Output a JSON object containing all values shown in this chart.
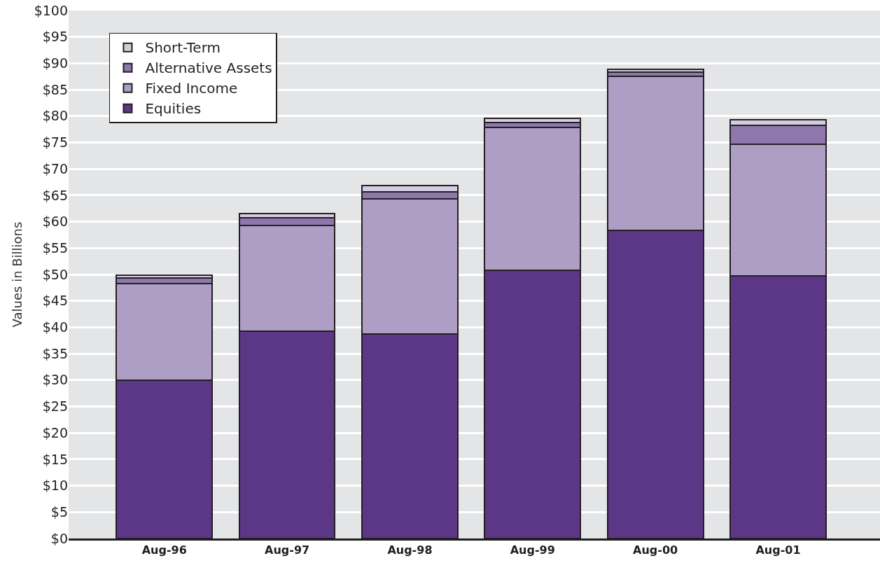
{
  "chart_data": {
    "type": "bar",
    "ylabel": "Values in Billions",
    "categories": [
      "Aug-96",
      "Aug-97",
      "Aug-98",
      "Aug-99",
      "Aug-00",
      "Aug-01"
    ],
    "series": [
      {
        "name": "Equities",
        "color": "#5c3788",
        "values": [
          30.0,
          39.2,
          38.7,
          50.8,
          58.3,
          49.7
        ]
      },
      {
        "name": "Fixed Income",
        "color": "#ae9ec6",
        "values": [
          18.3,
          20.1,
          25.6,
          27.1,
          29.2,
          25.0
        ]
      },
      {
        "name": "Alternative Assets",
        "color": "#8d77ad",
        "values": [
          1.1,
          1.5,
          1.3,
          0.9,
          0.8,
          3.6
        ]
      },
      {
        "name": "Short-Term",
        "color": "#d5cbe2",
        "values": [
          0.5,
          0.7,
          1.3,
          0.8,
          0.5,
          1.0
        ]
      }
    ],
    "stacked": true,
    "ylim": [
      0,
      100
    ],
    "yticks": [
      {
        "value": 0,
        "label": "$0"
      },
      {
        "value": 5,
        "label": "$5"
      },
      {
        "value": 10,
        "label": "$10"
      },
      {
        "value": 15,
        "label": "$15"
      },
      {
        "value": 20,
        "label": "$20"
      },
      {
        "value": 25,
        "label": "$25"
      },
      {
        "value": 30,
        "label": "$30"
      },
      {
        "value": 35,
        "label": "$35"
      },
      {
        "value": 40,
        "label": "$40"
      },
      {
        "value": 45,
        "label": "$45"
      },
      {
        "value": 50,
        "label": "$50"
      },
      {
        "value": 55,
        "label": "$55"
      },
      {
        "value": 60,
        "label": "$60"
      },
      {
        "value": 65,
        "label": "$65"
      },
      {
        "value": 70,
        "label": "$70"
      },
      {
        "value": 75,
        "label": "$75"
      },
      {
        "value": 80,
        "label": "$80"
      },
      {
        "value": 85,
        "label": "$85"
      },
      {
        "value": 90,
        "label": "$90"
      },
      {
        "value": 95,
        "label": "$95"
      },
      {
        "value": 100,
        "label": "$100"
      }
    ],
    "grid": "y",
    "legend": "top left"
  }
}
